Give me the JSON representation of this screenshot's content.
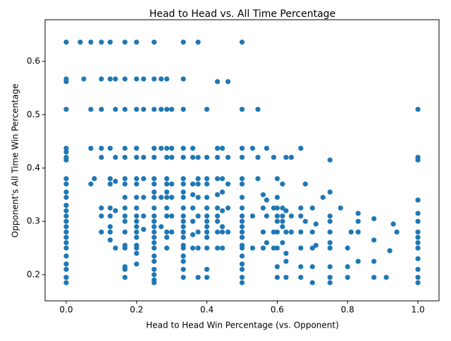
{
  "chart_data": {
    "type": "scatter",
    "title": "Head to Head vs. All Time Percentage",
    "x_label": "Head to Head Win Percentage (vs. Opponent)",
    "y_label": "Opponent's All Time Win Percentage",
    "color": "#1f77b4",
    "xlim": [
      -0.06,
      1.06
    ],
    "ylim": [
      0.151,
      0.678
    ],
    "xticks": [
      {
        "value": 0,
        "label": "0.0"
      },
      0.2,
      0.4,
      0.6,
      0.8,
      {
        "value": 1,
        "label": "1.0"
      }
    ],
    "yticks": [
      0.2,
      0.3,
      0.4,
      0.5,
      0.6
    ],
    "x": [
      0,
      0,
      0,
      0,
      0,
      0,
      0,
      0,
      0,
      0,
      0,
      0,
      0,
      0,
      0,
      0,
      0,
      0,
      0,
      0,
      0,
      0,
      0,
      0,
      0,
      0,
      0.04,
      0.05,
      0.07,
      0.07,
      0.07,
      0.07,
      0.08,
      0.1,
      0.1,
      0.1,
      0.1,
      0.1,
      0.1,
      0.1,
      0.1,
      0.125,
      0.125,
      0.125,
      0.125,
      0.125,
      0.125,
      0.125,
      0.125,
      0.125,
      0.125,
      0.14,
      0.14,
      0.14,
      0.14,
      0.14,
      0.14,
      0.167,
      0.167,
      0.167,
      0.167,
      0.167,
      0.167,
      0.167,
      0.167,
      0.167,
      0.167,
      0.167,
      0.167,
      0.167,
      0.167,
      0.167,
      0.167,
      0.167,
      0.2,
      0.2,
      0.2,
      0.2,
      0.2,
      0.2,
      0.2,
      0.2,
      0.2,
      0.2,
      0.2,
      0.2,
      0.2,
      0.2,
      0.2,
      0.2,
      0.2,
      0.2,
      0.22,
      0.22,
      0.22,
      0.22,
      0.22,
      0.22,
      0.22,
      0.25,
      0.25,
      0.25,
      0.25,
      0.25,
      0.25,
      0.25,
      0.25,
      0.25,
      0.25,
      0.25,
      0.25,
      0.25,
      0.25,
      0.25,
      0.25,
      0.25,
      0.25,
      0.25,
      0.25,
      0.25,
      0.25,
      0.25,
      0.27,
      0.27,
      0.27,
      0.27,
      0.27,
      0.286,
      0.286,
      0.286,
      0.286,
      0.286,
      0.286,
      0.286,
      0.286,
      0.286,
      0.286,
      0.286,
      0.286,
      0.286,
      0.3,
      0.3,
      0.3,
      0.3,
      0.3,
      0.3,
      0.3,
      0.333,
      0.333,
      0.333,
      0.333,
      0.333,
      0.333,
      0.333,
      0.333,
      0.333,
      0.333,
      0.333,
      0.333,
      0.333,
      0.333,
      0.333,
      0.333,
      0.333,
      0.333,
      0.333,
      0.333,
      0.333,
      0.36,
      0.36,
      0.36,
      0.36,
      0.36,
      0.36,
      0.36,
      0.36,
      0.375,
      0.375,
      0.375,
      0.375,
      0.375,
      0.375,
      0.375,
      0.375,
      0.375,
      0.4,
      0.4,
      0.4,
      0.4,
      0.4,
      0.4,
      0.4,
      0.4,
      0.4,
      0.4,
      0.4,
      0.4,
      0.4,
      0.4,
      0.43,
      0.43,
      0.43,
      0.43,
      0.43,
      0.43,
      0.43,
      0.43,
      0.43,
      0.43,
      0.444,
      0.444,
      0.444,
      0.444,
      0.444,
      0.444,
      0.444,
      0.46,
      0.46,
      0.46,
      0.46,
      0.46,
      0.5,
      0.5,
      0.5,
      0.5,
      0.5,
      0.5,
      0.5,
      0.5,
      0.5,
      0.5,
      0.5,
      0.5,
      0.5,
      0.5,
      0.5,
      0.5,
      0.5,
      0.5,
      0.5,
      0.5,
      0.53,
      0.53,
      0.53,
      0.545,
      0.545,
      0.545,
      0.56,
      0.56,
      0.56,
      0.56,
      0.57,
      0.57,
      0.57,
      0.57,
      0.59,
      0.59,
      0.59,
      0.59,
      0.6,
      0.6,
      0.6,
      0.6,
      0.6,
      0.6,
      0.6,
      0.6,
      0.6,
      0.615,
      0.615,
      0.615,
      0.615,
      0.615,
      0.615,
      0.625,
      0.625,
      0.625,
      0.625,
      0.625,
      0.625,
      0.64,
      0.64,
      0.64,
      0.667,
      0.667,
      0.667,
      0.667,
      0.667,
      0.667,
      0.667,
      0.68,
      0.68,
      0.7,
      0.7,
      0.7,
      0.7,
      0.7,
      0.71,
      0.71,
      0.73,
      0.75,
      0.75,
      0.75,
      0.75,
      0.75,
      0.75,
      0.75,
      0.75,
      0.75,
      0.75,
      0.78,
      0.8,
      0.8,
      0.8,
      0.81,
      0.83,
      0.83,
      0.83,
      0.83,
      0.875,
      0.875,
      0.875,
      0.875,
      0.91,
      0.92,
      0.93,
      0.94,
      1,
      1,
      1,
      1,
      1,
      1,
      1,
      1,
      1,
      1,
      1,
      1,
      1,
      1
    ],
    "y": [
      0.636,
      0.567,
      0.562,
      0.51,
      0.437,
      0.43,
      0.42,
      0.415,
      0.38,
      0.37,
      0.355,
      0.345,
      0.33,
      0.32,
      0.31,
      0.3,
      0.29,
      0.28,
      0.27,
      0.26,
      0.25,
      0.235,
      0.22,
      0.21,
      0.195,
      0.185,
      0.636,
      0.567,
      0.636,
      0.51,
      0.437,
      0.37,
      0.38,
      0.636,
      0.567,
      0.51,
      0.437,
      0.42,
      0.325,
      0.31,
      0.28,
      0.636,
      0.567,
      0.437,
      0.38,
      0.37,
      0.325,
      0.31,
      0.29,
      0.28,
      0.265,
      0.567,
      0.51,
      0.42,
      0.375,
      0.32,
      0.25,
      0.636,
      0.567,
      0.51,
      0.437,
      0.42,
      0.38,
      0.37,
      0.345,
      0.325,
      0.31,
      0.3,
      0.28,
      0.255,
      0.25,
      0.215,
      0.21,
      0.195,
      0.636,
      0.567,
      0.51,
      0.437,
      0.42,
      0.38,
      0.37,
      0.345,
      0.325,
      0.31,
      0.3,
      0.29,
      0.28,
      0.27,
      0.255,
      0.25,
      0.24,
      0.22,
      0.567,
      0.51,
      0.42,
      0.38,
      0.345,
      0.31,
      0.285,
      0.636,
      0.567,
      0.51,
      0.437,
      0.42,
      0.38,
      0.37,
      0.355,
      0.345,
      0.325,
      0.31,
      0.3,
      0.29,
      0.28,
      0.27,
      0.26,
      0.25,
      0.235,
      0.225,
      0.21,
      0.2,
      0.19,
      0.185,
      0.567,
      0.51,
      0.437,
      0.345,
      0.29,
      0.567,
      0.51,
      0.437,
      0.42,
      0.38,
      0.37,
      0.355,
      0.345,
      0.325,
      0.31,
      0.28,
      0.27,
      0.25,
      0.51,
      0.437,
      0.42,
      0.37,
      0.345,
      0.31,
      0.28,
      0.636,
      0.567,
      0.51,
      0.437,
      0.42,
      0.38,
      0.37,
      0.355,
      0.345,
      0.325,
      0.31,
      0.3,
      0.29,
      0.28,
      0.27,
      0.255,
      0.25,
      0.235,
      0.225,
      0.21,
      0.195,
      0.437,
      0.42,
      0.37,
      0.35,
      0.325,
      0.3,
      0.275,
      0.25,
      0.636,
      0.42,
      0.38,
      0.37,
      0.345,
      0.31,
      0.28,
      0.25,
      0.195,
      0.51,
      0.42,
      0.38,
      0.37,
      0.345,
      0.325,
      0.31,
      0.3,
      0.29,
      0.28,
      0.27,
      0.25,
      0.21,
      0.195,
      0.562,
      0.437,
      0.42,
      0.38,
      0.35,
      0.325,
      0.31,
      0.3,
      0.28,
      0.25,
      0.437,
      0.38,
      0.355,
      0.32,
      0.29,
      0.28,
      0.25,
      0.562,
      0.42,
      0.37,
      0.325,
      0.28,
      0.636,
      0.51,
      0.437,
      0.42,
      0.38,
      0.37,
      0.345,
      0.325,
      0.31,
      0.3,
      0.29,
      0.28,
      0.27,
      0.255,
      0.25,
      0.235,
      0.22,
      0.21,
      0.195,
      0.185,
      0.437,
      0.31,
      0.25,
      0.51,
      0.42,
      0.38,
      0.35,
      0.325,
      0.28,
      0.25,
      0.437,
      0.34,
      0.31,
      0.26,
      0.42,
      0.325,
      0.28,
      0.25,
      0.38,
      0.345,
      0.325,
      0.31,
      0.3,
      0.28,
      0.25,
      0.215,
      0.195,
      0.37,
      0.325,
      0.31,
      0.3,
      0.29,
      0.26,
      0.42,
      0.32,
      0.28,
      0.24,
      0.225,
      0.195,
      0.42,
      0.31,
      0.28,
      0.437,
      0.325,
      0.31,
      0.28,
      0.25,
      0.215,
      0.195,
      0.37,
      0.3,
      0.325,
      0.28,
      0.25,
      0.215,
      0.185,
      0.295,
      0.255,
      0.345,
      0.415,
      0.355,
      0.31,
      0.3,
      0.28,
      0.26,
      0.25,
      0.215,
      0.195,
      0.185,
      0.325,
      0.25,
      0.215,
      0.195,
      0.28,
      0.315,
      0.3,
      0.28,
      0.225,
      0.305,
      0.265,
      0.225,
      0.195,
      0.195,
      0.245,
      0.295,
      0.28,
      0.51,
      0.42,
      0.415,
      0.34,
      0.315,
      0.3,
      0.28,
      0.27,
      0.26,
      0.25,
      0.23,
      0.21,
      0.195,
      0.185
    ]
  }
}
